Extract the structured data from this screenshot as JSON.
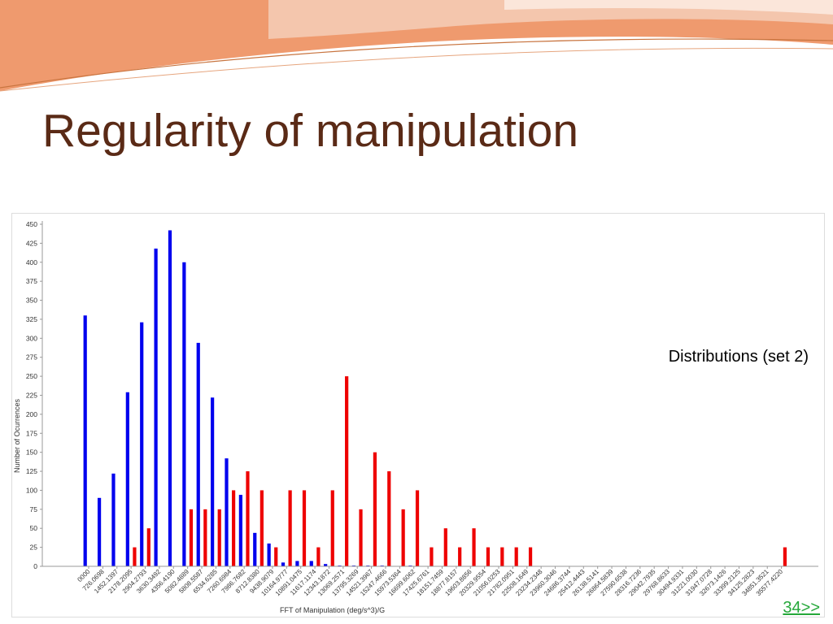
{
  "slide": {
    "title": "Regularity of manipulation",
    "annotation": "Distributions (set 2)",
    "page_link": "34>>"
  },
  "colors": {
    "title": "#5a2a16",
    "series_blue": "#0000ee",
    "series_red": "#ee0000",
    "link": "#25a83a",
    "header_orange": "#ef9a6e"
  },
  "chart_data": {
    "type": "bar",
    "xlabel": "FFT of Manipulation (deg/s^3)/G",
    "ylabel": "Number of Ocurrences",
    "ylim": [
      0,
      450
    ],
    "yticks": [
      0,
      25,
      50,
      75,
      100,
      125,
      150,
      175,
      200,
      225,
      250,
      275,
      300,
      325,
      350,
      375,
      400,
      425,
      450
    ],
    "grid": false,
    "legend": "none",
    "categories": [
      "0000",
      "726.0698",
      "1452.1397",
      "2178.2095",
      "2904.2793",
      "3630.3492",
      "4356.4190",
      "5082.4889",
      "5808.5587",
      "6534.6285",
      "7260.6984",
      "7986.7682",
      "8712.8380",
      "9438.9079",
      "10164.9777",
      "10891.0475",
      "11617.1174",
      "12343.1872",
      "13069.2571",
      "13795.3269",
      "14521.3967",
      "15247.4666",
      "15973.5364",
      "16699.6062",
      "17425.6761",
      "18151.7459",
      "18877.8157",
      "19603.8856",
      "20329.9554",
      "21056.0253",
      "21782.0951",
      "22508.1649",
      "23234.2348",
      "23960.3046",
      "24686.3744",
      "25412.4443",
      "26138.5141",
      "26864.5839",
      "27590.6538",
      "28316.7236",
      "29042.7935",
      "29768.8633",
      "30494.9331",
      "31221.0030",
      "31947.0728",
      "32673.1426",
      "33399.2125",
      "34125.2823",
      "34851.3521",
      "35577.4220"
    ],
    "series": [
      {
        "color": "#0000ee",
        "values": [
          330,
          90,
          122,
          229,
          321,
          418,
          442,
          400,
          294,
          222,
          142,
          94,
          44,
          30,
          5,
          7,
          7,
          3,
          1,
          1,
          1,
          1,
          0,
          1,
          0,
          0,
          0,
          0,
          0,
          0,
          0,
          0,
          0,
          0,
          0,
          0,
          0,
          0,
          0,
          0,
          0,
          0,
          0,
          0,
          0,
          0,
          0,
          0,
          0,
          0
        ]
      },
      {
        "color": "#ee0000",
        "values": [
          0,
          0,
          0,
          25,
          50,
          0,
          0,
          75,
          75,
          75,
          100,
          125,
          100,
          25,
          100,
          100,
          25,
          100,
          250,
          75,
          150,
          125,
          75,
          100,
          25,
          50,
          25,
          50,
          25,
          25,
          25,
          25,
          0,
          0,
          0,
          0,
          0,
          0,
          0,
          0,
          0,
          0,
          0,
          0,
          0,
          0,
          0,
          0,
          0,
          25
        ]
      }
    ]
  }
}
